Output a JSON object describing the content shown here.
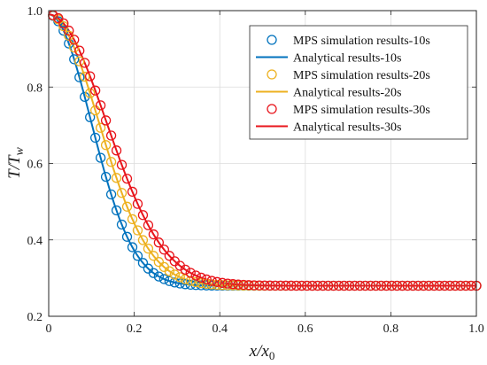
{
  "chart_data": {
    "type": "line",
    "title": "",
    "xlabel": "x/x₀",
    "ylabel": "T/T_w",
    "xlim": [
      0,
      1
    ],
    "ylim": [
      0.2,
      1.0
    ],
    "xticks": [
      "0",
      "0.2",
      "0.4",
      "0.6",
      "0.8",
      "1.0"
    ],
    "yticks": [
      "0.2",
      "0.4",
      "0.6",
      "0.8",
      "1.0"
    ],
    "grid": true,
    "legend_position": "top-right",
    "model": {
      "baseline": 0.28,
      "amplitude": 0.71,
      "note_times": [
        10,
        20,
        30
      ]
    },
    "series": [
      {
        "name": "MPS simulation results-10s",
        "kind": "marker",
        "color": "#0072BD",
        "time": 10,
        "scale": 0.14
      },
      {
        "name": "Analytical results-10s",
        "kind": "line",
        "color": "#0072BD",
        "time": 10,
        "scale": 0.14
      },
      {
        "name": "MPS simulation results-20s",
        "kind": "marker",
        "color": "#EDB120",
        "time": 20,
        "scale": 0.165
      },
      {
        "name": "Analytical results-20s",
        "kind": "line",
        "color": "#EDB120",
        "time": 20,
        "scale": 0.165
      },
      {
        "name": "MPS simulation results-30s",
        "kind": "marker",
        "color": "#E8141B",
        "time": 30,
        "scale": 0.19
      },
      {
        "name": "Analytical results-30s",
        "kind": "line",
        "color": "#E8141B",
        "time": 30,
        "scale": 0.19
      }
    ]
  }
}
